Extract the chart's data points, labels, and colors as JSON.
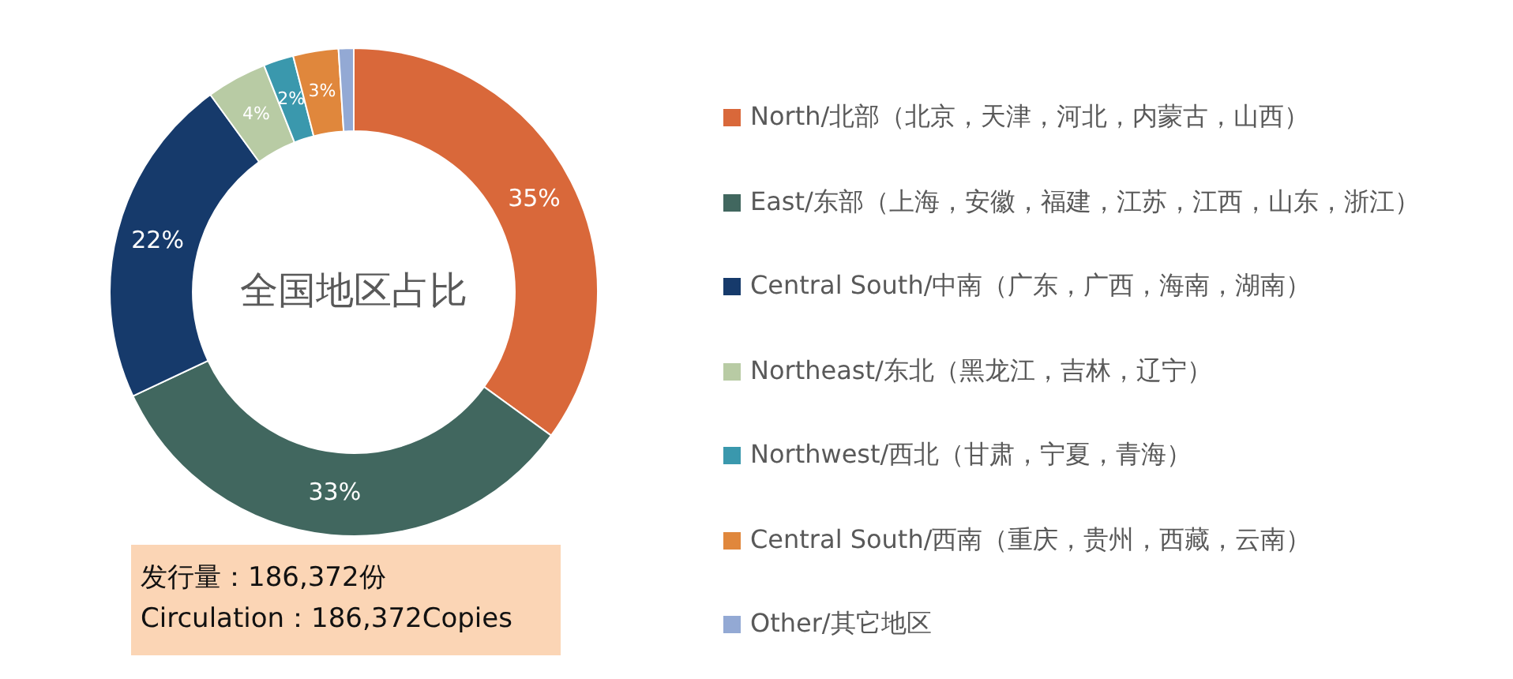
{
  "chart_data": {
    "type": "donut",
    "title": "全国地区占比",
    "categories": [
      "North/北部（北京，天津，河北，内蒙古，山西）",
      "East/东部（上海，安徽，福建，江苏，江西，山东，浙江）",
      "Central South/中南（广东，广西，海南，湖南）",
      "Northeast/东北（黑龙江，吉林，辽宁）",
      "Northwest/西北（甘肃，宁夏，青海）",
      "Central South/西南（重庆，贵州，西藏，云南）",
      "Other/其它地区"
    ],
    "values": [
      35,
      33,
      22,
      4,
      2,
      3,
      1
    ],
    "colors": [
      "#d9683a",
      "#41675f",
      "#163a6b",
      "#b8cba4",
      "#3a98ad",
      "#e0873c",
      "#93a9d4"
    ],
    "value_labels": [
      "35%",
      "33%",
      "22%",
      "4%",
      "2%",
      "3%",
      null
    ],
    "legend": "right",
    "annotations": [
      "发行量：186,372份",
      "Circulation：186,372Copies"
    ]
  }
}
